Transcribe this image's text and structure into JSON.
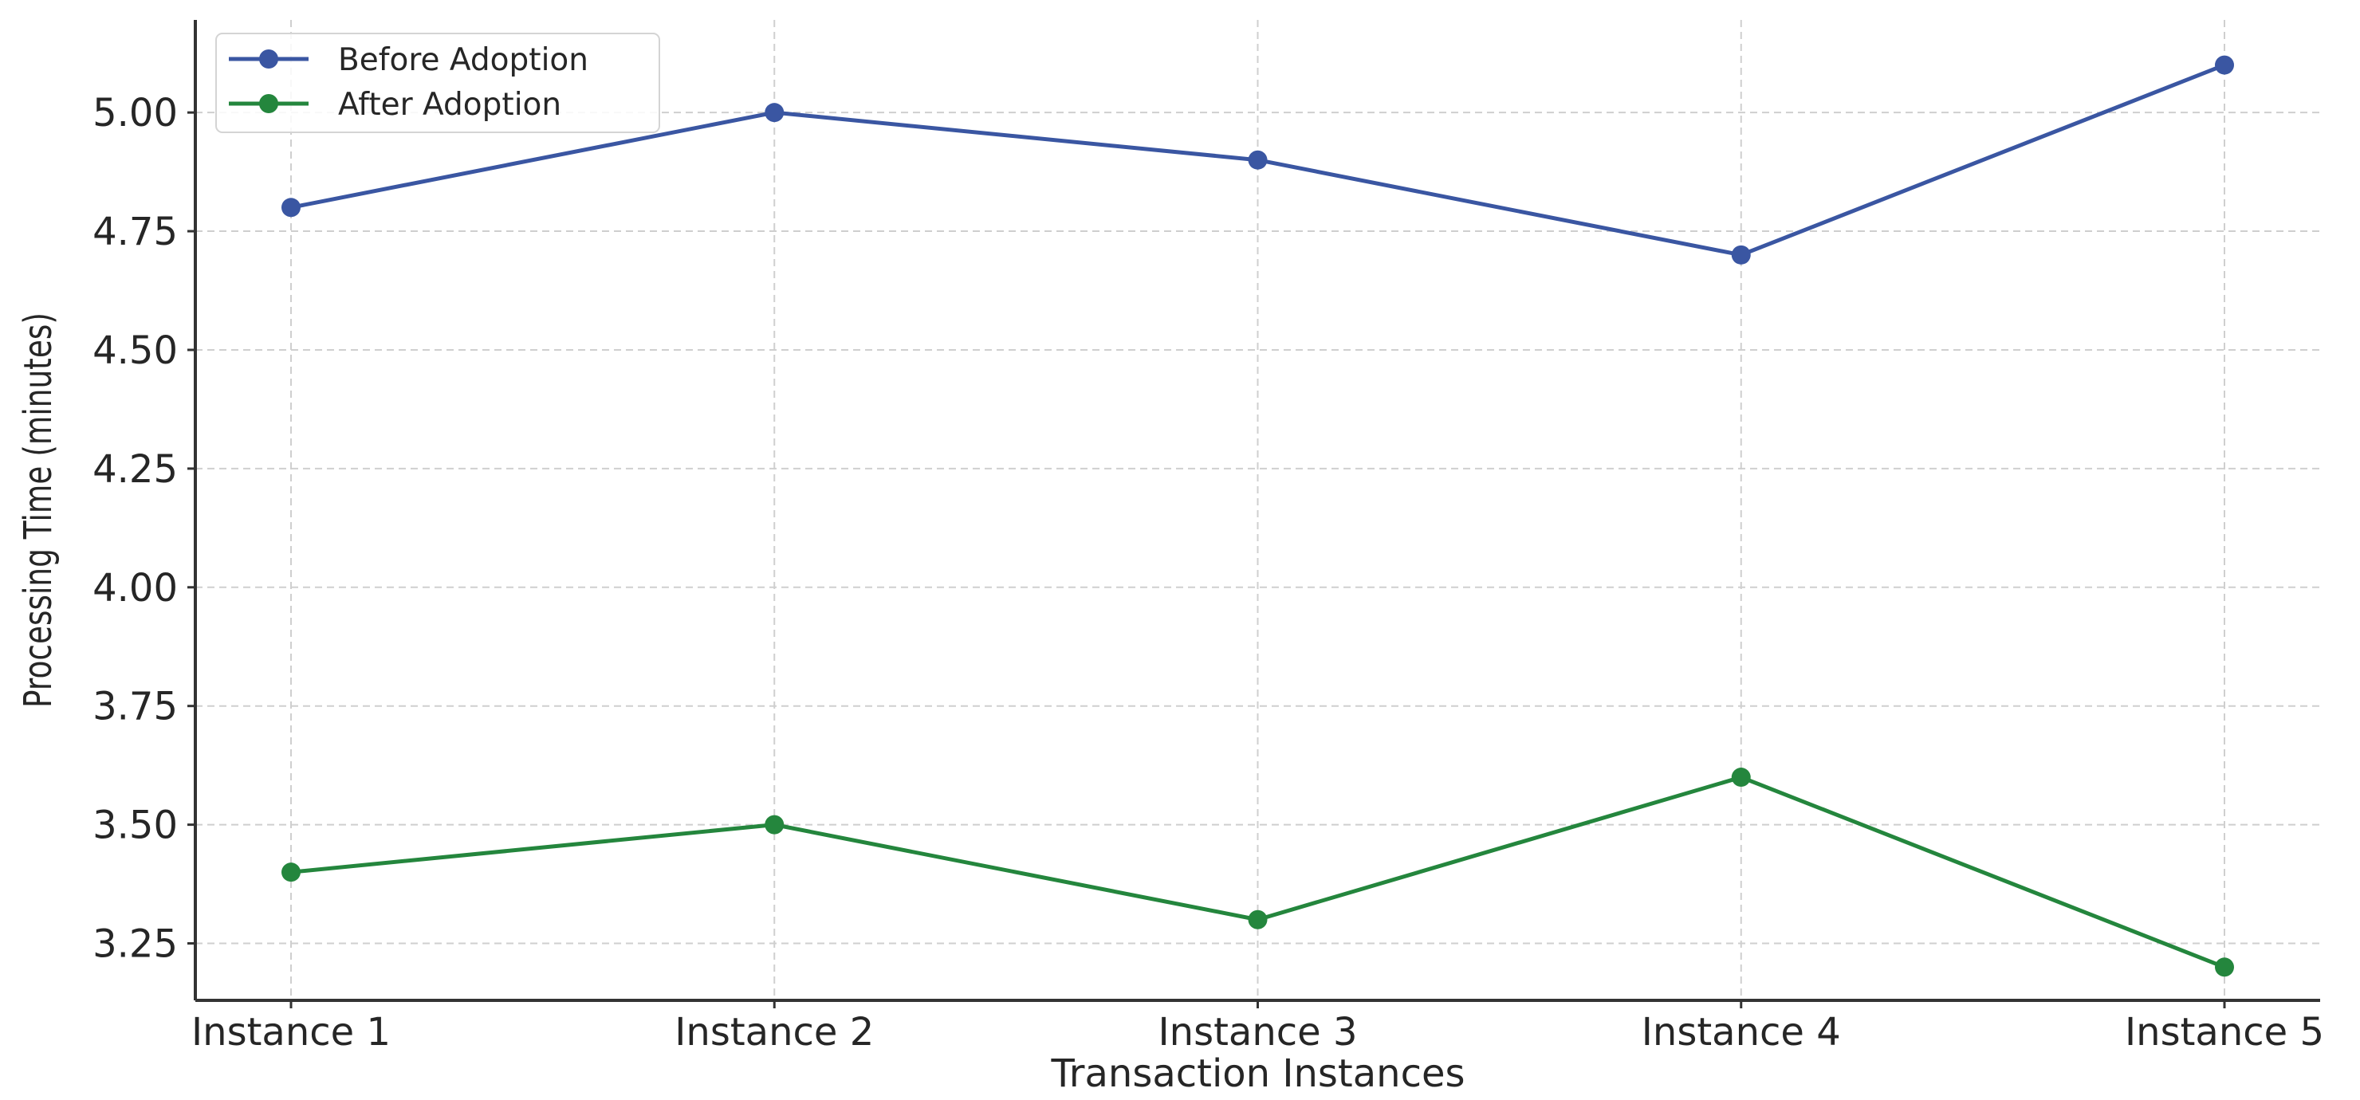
{
  "chart_data": {
    "type": "line",
    "categories": [
      "Instance 1",
      "Instance 2",
      "Instance 3",
      "Instance 4",
      "Instance 5"
    ],
    "series": [
      {
        "name": "Before Adoption",
        "values": [
          4.8,
          5.0,
          4.9,
          4.7,
          5.1
        ],
        "color": "#3a56a2"
      },
      {
        "name": "After Adoption",
        "values": [
          3.4,
          3.5,
          3.3,
          3.6,
          3.2
        ],
        "color": "#24863d"
      }
    ],
    "title": "",
    "xlabel": "Transaction Instances",
    "ylabel": "Processing Time (minutes)",
    "ylim": [
      3.13,
      5.195
    ],
    "yticks": [
      3.25,
      3.5,
      3.75,
      4.0,
      4.25,
      4.5,
      4.75,
      5.0
    ],
    "ytick_labels": [
      "3.25",
      "3.50",
      "3.75",
      "4.00",
      "4.25",
      "4.50",
      "4.75",
      "5.00"
    ],
    "grid": true,
    "marker": "circle",
    "legend_position": "top-left"
  }
}
